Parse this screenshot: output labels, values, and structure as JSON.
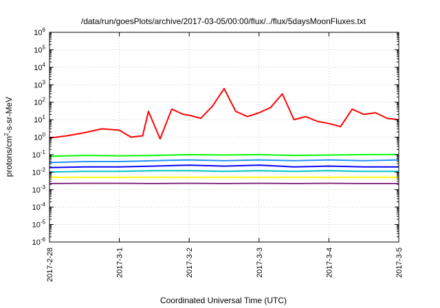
{
  "chart_data": {
    "type": "line",
    "title": "/data/run/goesPlots/archive/2017-03-05/00:00/flux/../flux/5daysMoonFluxes.txt",
    "xlabel": "Coordinated Universal Time (UTC)",
    "ylabel": {
      "base": "protons/cm",
      "sup": "2",
      "rest": "-s-sr-MeV"
    },
    "scale": {
      "y": "log"
    },
    "xlim": [
      "2017-02-28",
      "2017-03-05"
    ],
    "ylim": [
      1e-06,
      1000000.0
    ],
    "grid": true,
    "x_ticks": [
      "2017-2-28",
      "2017-3-1",
      "2017-3-2",
      "2017-3-3",
      "2017-3-4",
      "2017-3-5"
    ],
    "y_ticks": [
      {
        "value": 1e-06,
        "base": "10",
        "exp": "-6"
      },
      {
        "value": 1e-05,
        "base": "10",
        "exp": "-5"
      },
      {
        "value": 0.0001,
        "base": "10",
        "exp": "-4"
      },
      {
        "value": 0.001,
        "base": "10",
        "exp": "-3"
      },
      {
        "value": 0.01,
        "base": "10",
        "exp": "-2"
      },
      {
        "value": 0.1,
        "base": "10",
        "exp": "-1"
      },
      {
        "value": 1,
        "base": "10",
        "exp": "0"
      },
      {
        "value": 10,
        "base": "10",
        "exp": "1"
      },
      {
        "value": 100,
        "base": "10",
        "exp": "2"
      },
      {
        "value": 1000,
        "base": "10",
        "exp": "3"
      },
      {
        "value": 10000,
        "base": "10",
        "exp": "4"
      },
      {
        "value": 100000,
        "base": "10",
        "exp": "5"
      },
      {
        "value": 1000000,
        "base": "10",
        "exp": "6"
      }
    ],
    "series": [
      {
        "color": "#ff0000",
        "x": [
          "2017-02-28",
          "2017-02-28T06:00",
          "2017-02-28T12:00",
          "2017-02-28T18:00",
          "2017-03-01",
          "2017-03-01T04:00",
          "2017-03-01T08:00",
          "2017-03-01T10:00",
          "2017-03-01T14:00",
          "2017-03-01T18:00",
          "2017-03-01T22:00",
          "2017-03-02",
          "2017-03-02T04:00",
          "2017-03-02T08:00",
          "2017-03-02T12:00",
          "2017-03-02T16:00",
          "2017-03-02T20:00",
          "2017-03-03",
          "2017-03-03T04:00",
          "2017-03-03T08:00",
          "2017-03-03T12:00",
          "2017-03-03T16:00",
          "2017-03-03T20:00",
          "2017-03-04",
          "2017-03-04T04:00",
          "2017-03-04T08:00",
          "2017-03-04T12:00",
          "2017-03-04T16:00",
          "2017-03-04T20:00",
          "2017-03-05"
        ],
        "values": [
          0.9,
          1.2,
          1.8,
          3.0,
          2.5,
          1.0,
          1.2,
          30,
          0.8,
          40,
          20,
          18,
          12,
          60,
          600,
          30,
          15,
          25,
          50,
          300,
          10,
          15,
          8,
          6,
          4,
          40,
          20,
          25,
          12,
          10
        ]
      },
      {
        "color": "#00ff00",
        "x": [
          "2017-02-28",
          "2017-02-28T12:00",
          "2017-03-01",
          "2017-03-01T12:00",
          "2017-03-02",
          "2017-03-02T12:00",
          "2017-03-03",
          "2017-03-03T12:00",
          "2017-03-04",
          "2017-03-04T12:00",
          "2017-03-05"
        ],
        "values": [
          0.08,
          0.09,
          0.085,
          0.09,
          0.1,
          0.095,
          0.1,
          0.09,
          0.095,
          0.1,
          0.1
        ]
      },
      {
        "color": "#1e90ff",
        "x": [
          "2017-02-28",
          "2017-02-28T12:00",
          "2017-03-01",
          "2017-03-01T12:00",
          "2017-03-02",
          "2017-03-02T12:00",
          "2017-03-03",
          "2017-03-03T12:00",
          "2017-03-04",
          "2017-03-04T12:00",
          "2017-03-05"
        ],
        "values": [
          0.035,
          0.04,
          0.04,
          0.045,
          0.05,
          0.045,
          0.05,
          0.045,
          0.05,
          0.045,
          0.05
        ]
      },
      {
        "color": "#0000ff",
        "x": [
          "2017-02-28",
          "2017-02-28T12:00",
          "2017-03-01",
          "2017-03-01T12:00",
          "2017-03-02",
          "2017-03-02T12:00",
          "2017-03-03",
          "2017-03-03T12:00",
          "2017-03-04",
          "2017-03-04T12:00",
          "2017-03-05"
        ],
        "values": [
          0.018,
          0.02,
          0.02,
          0.022,
          0.025,
          0.022,
          0.025,
          0.02,
          0.022,
          0.02,
          0.02
        ]
      },
      {
        "color": "#00c8c8",
        "x": [
          "2017-02-28",
          "2017-02-28T12:00",
          "2017-03-01",
          "2017-03-01T12:00",
          "2017-03-02",
          "2017-03-02T12:00",
          "2017-03-03",
          "2017-03-03T12:00",
          "2017-03-04",
          "2017-03-04T12:00",
          "2017-03-05"
        ],
        "values": [
          0.01,
          0.011,
          0.011,
          0.012,
          0.012,
          0.011,
          0.012,
          0.011,
          0.012,
          0.011,
          0.011
        ]
      },
      {
        "color": "#ffff00",
        "x": [
          "2017-02-28",
          "2017-03-01",
          "2017-03-02",
          "2017-03-03",
          "2017-03-04",
          "2017-03-05"
        ],
        "values": [
          0.005,
          0.005,
          0.005,
          0.005,
          0.005,
          0.005
        ]
      },
      {
        "color": "#8b2f7f",
        "x": [
          "2017-02-28",
          "2017-02-28T12:00",
          "2017-03-01",
          "2017-03-01T12:00",
          "2017-03-02",
          "2017-03-02T12:00",
          "2017-03-03",
          "2017-03-03T12:00",
          "2017-03-04",
          "2017-03-04T12:00",
          "2017-03-05"
        ],
        "values": [
          0.0022,
          0.0023,
          0.0023,
          0.0022,
          0.0023,
          0.0022,
          0.0023,
          0.0022,
          0.0023,
          0.0022,
          0.0022
        ]
      }
    ]
  }
}
